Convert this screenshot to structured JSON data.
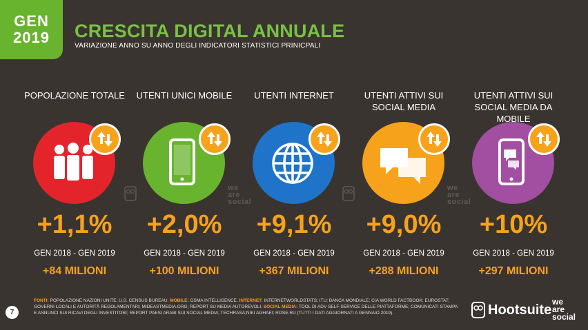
{
  "header": {
    "date_line1": "GEN",
    "date_line2": "2019",
    "title": "CRESCITA DIGITAL ANNUALE",
    "subtitle": "VARIAZIONE ANNO SU ANNO DEGLI INDICATORI STATISTICI PRINICPALI"
  },
  "metrics": [
    {
      "label": "POPOLAZIONE TOTALE",
      "percent": "+1,1%",
      "period": "GEN 2018 - GEN 2019",
      "absolute": "+84 MILIONI",
      "color": "#e3242b",
      "icon": "people-icon"
    },
    {
      "label": "UTENTI UNICI MOBILE",
      "percent": "+2,0%",
      "period": "GEN 2018 - GEN 2019",
      "absolute": "+100 MILIONI",
      "color": "#69b42e",
      "icon": "mobile-phone-icon"
    },
    {
      "label": "UTENTI INTERNET",
      "percent": "+9,1%",
      "period": "GEN 2018 - GEN 2019",
      "absolute": "+367 MILIONI",
      "color": "#1f74c9",
      "icon": "globe-icon"
    },
    {
      "label": "UTENTI ATTIVI SUI SOCIAL MEDIA",
      "percent": "+9,0%",
      "period": "GEN 2018 - GEN 2019",
      "absolute": "+288 MILIONI",
      "color": "#f7a21b",
      "icon": "chat-bubbles-icon"
    },
    {
      "label": "UTENTI ATTIVI SUI SOCIAL MEDIA DA MOBILE",
      "percent": "+10%",
      "period": "GEN 2018 - GEN 2019",
      "absolute": "+297 MILIONI",
      "color": "#a24ea1",
      "icon": "mobile-chat-icon"
    }
  ],
  "watermark_text": "we are social",
  "footer": {
    "page_number": "7",
    "sources": [
      {
        "key": "FONTI:",
        "text": " POPOLAZIONE NAZIONI UNITE; U.S. CENSUS BUREAU. "
      },
      {
        "key": "MOBILE:",
        "text": " GSMA INTELLIGENCE. "
      },
      {
        "key": "INTERNET:",
        "text": " INTERNETWORLDSTATS; ITU; BANCA MONDIALE; CIA WORLD FACTBOOK; EUROSTAT; GOVERNI LOCALI E AUTORITÀ REGOLAMENTARI; MIDEASTMEDIA.ORG; REPORT SU MEDIA AUTOREVOLI. "
      },
      {
        "key": "SOCIAL MEDIA:",
        "text": " TOOL DI ADV SELF-SERVICE DELLE PIATTAFORME; COMUNICATI STAMPA E ANNUNCI SUI RICAVI DEGLI INVESTITORI; REPORT PAESI ARABI SUI SOCIAL MEDIA; TECHRASA;NIKI AGHAEI; ROSE.RU (TUTTI I DATI AGGIORNATI A GENNAIO 2019)."
      }
    ],
    "brand1": "Hootsuite",
    "brand2_line1": "we",
    "brand2_line2": "are",
    "brand2_line3": "social"
  },
  "colors": {
    "background": "#3a3431",
    "accent_green": "#7ac143",
    "accent_orange": "#f7a21b"
  }
}
